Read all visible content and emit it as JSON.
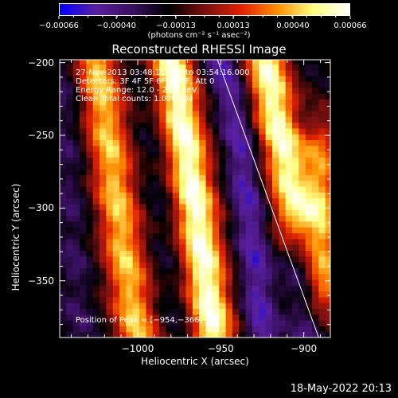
{
  "chart_data": {
    "type": "heatmap",
    "title": "Reconstructed RHESSI Image",
    "xlabel": "Heliocentric X (arcsec)",
    "ylabel": "Heliocentric Y (arcsec)",
    "xlim": [
      -1047,
      -884
    ],
    "ylim": [
      -389,
      -198
    ],
    "xticks": [
      {
        "label": "−1000",
        "value": -1000
      },
      {
        "label": "−950",
        "value": -950
      },
      {
        "label": "−900",
        "value": -900
      }
    ],
    "yticks": [
      {
        "label": "−200",
        "value": -200
      },
      {
        "label": "−250",
        "value": -250
      },
      {
        "label": "−300",
        "value": -300
      },
      {
        "label": "−350",
        "value": -350
      }
    ],
    "colorbar": {
      "range": [
        -0.00066,
        0.00066
      ],
      "tick_labels": [
        "−0.00066",
        "−0.00040",
        "−0.00013",
        "0.00013",
        "0.00040",
        "0.00066"
      ],
      "tick_values": [
        -0.00066,
        -0.0004,
        -0.00013,
        0.00013,
        0.0004,
        0.00066
      ],
      "units": "(photons cm⁻² s⁻¹ asec⁻²)",
      "colors": [
        "#0000ff",
        "#5a1fa0",
        "#3a1060",
        "#000000",
        "#7a1010",
        "#e02000",
        "#ff8c00",
        "#ffff80",
        "#ffffff"
      ]
    },
    "annotations": [
      "27-Nov-2013 03:48:16.000 to 03:54:16.000",
      "Detectors: 3F 4F 5F 6F 7F 8F, Att 0",
      "Energy Range: 12.0 - 25.0 keV",
      "Clean     Total counts: 1.02E+04"
    ],
    "peak_label": "Position of Peak = [−954,−366]",
    "peak": [
      -954,
      -366
    ],
    "limb_line": [
      [
        -952,
        -198
      ],
      [
        -891,
        -389
      ]
    ],
    "grid": false,
    "bright_ridges": [
      {
        "path": [
          [
            -1000,
            -389
          ],
          [
            -1007,
            -340
          ],
          [
            -1012,
            -300
          ],
          [
            -1018,
            -250
          ],
          [
            -1025,
            -198
          ]
        ],
        "peak_value": 0.00045
      },
      {
        "path": [
          [
            -955,
            -380
          ],
          [
            -960,
            -340
          ],
          [
            -965,
            -300
          ],
          [
            -972,
            -250
          ],
          [
            -980,
            -198
          ]
        ],
        "peak_value": 0.00066
      },
      {
        "path": [
          [
            -905,
            -300
          ],
          [
            -912,
            -260
          ],
          [
            -918,
            -230
          ],
          [
            -922,
            -205
          ]
        ],
        "peak_value": 0.00062
      },
      {
        "path": [
          [
            -888,
            -350
          ],
          [
            -890,
            -300
          ],
          [
            -892,
            -260
          ]
        ],
        "peak_value": 0.0004
      }
    ],
    "dark_bands": [
      {
        "path": [
          [
            -1035,
            -389
          ],
          [
            -1040,
            -300
          ],
          [
            -1045,
            -198
          ]
        ],
        "value": -0.0003
      },
      {
        "path": [
          [
            -975,
            -389
          ],
          [
            -985,
            -300
          ],
          [
            -995,
            -198
          ]
        ],
        "value": -0.00025
      },
      {
        "path": [
          [
            -925,
            -389
          ],
          [
            -930,
            -330
          ],
          [
            -940,
            -240
          ],
          [
            -950,
            -198
          ]
        ],
        "value": -0.0005
      },
      {
        "path": [
          [
            -897,
            -389
          ],
          [
            -903,
            -330
          ],
          [
            -898,
            -250
          ]
        ],
        "value": -0.0004
      }
    ]
  },
  "footer": {
    "timestamp": "18-May-2022 20:13"
  }
}
